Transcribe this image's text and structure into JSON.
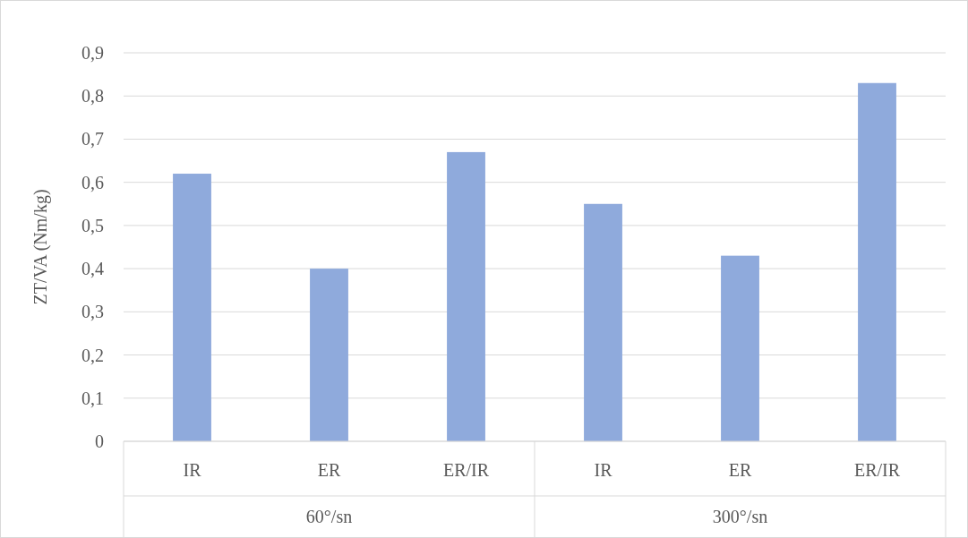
{
  "chart_data": {
    "type": "bar",
    "ylabel": "ZT/VA (Nm/kg)",
    "categories": [
      "IR",
      "ER",
      "ER/IR",
      "IR",
      "ER",
      "ER/IR"
    ],
    "values": [
      0.62,
      0.4,
      0.67,
      0.55,
      0.43,
      0.83
    ],
    "color": "#8faadc",
    "ylim": [
      0,
      0.9
    ],
    "yticks": [
      0,
      {
        "value": 0.1,
        "label": "0,1"
      },
      {
        "value": 0.2,
        "label": "0,2"
      },
      {
        "value": 0.3,
        "label": "0,3"
      },
      {
        "value": 0.4,
        "label": "0,4"
      },
      {
        "value": 0.5,
        "label": "0,5"
      },
      {
        "value": 0.6,
        "label": "0,6"
      },
      {
        "value": 0.7,
        "label": "0,7"
      },
      {
        "value": 0.8,
        "label": "0,8"
      },
      {
        "value": 0.9,
        "label": "0,9"
      }
    ],
    "grid": "y",
    "annotations": [
      "60°/sn",
      "300°/sn"
    ]
  }
}
